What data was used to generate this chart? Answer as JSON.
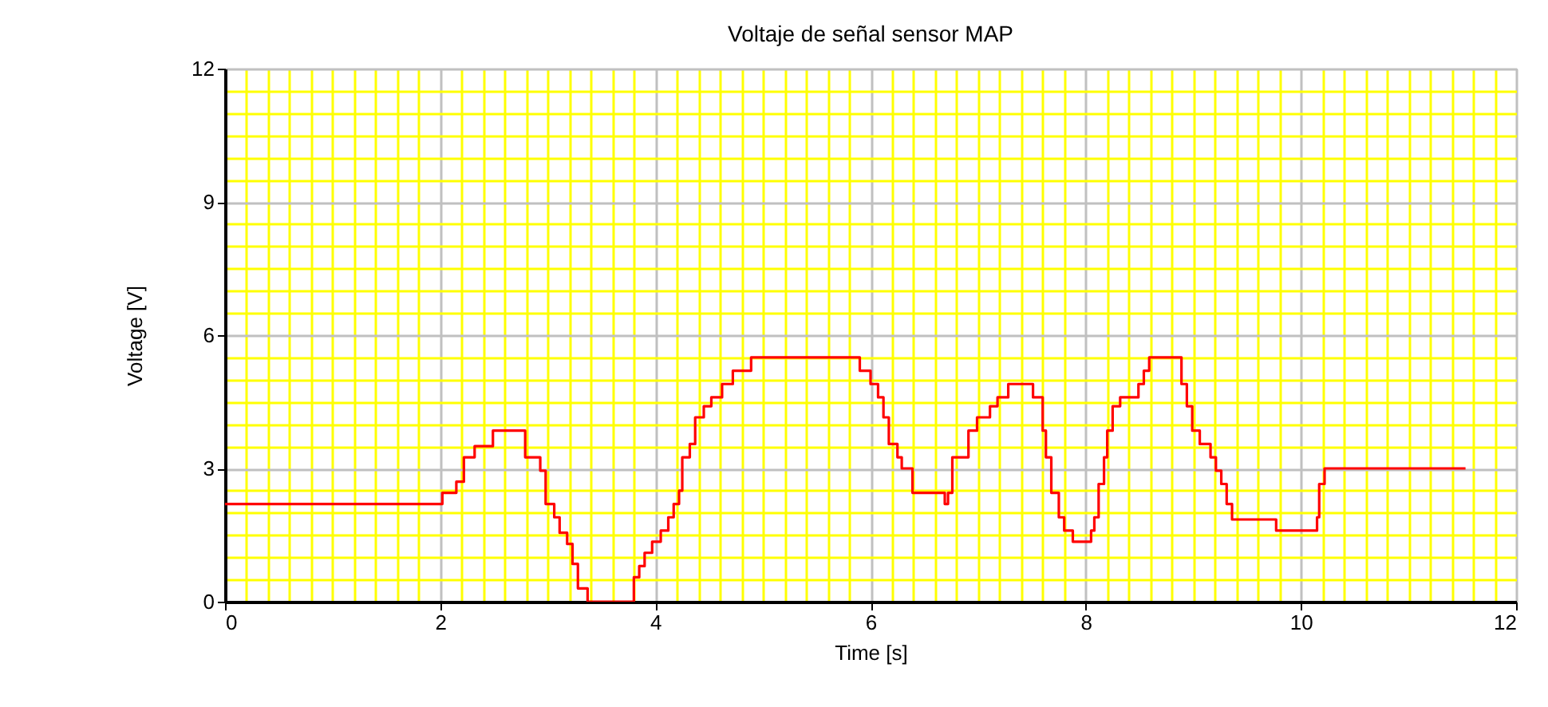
{
  "chart_data": {
    "type": "step",
    "title": "Voltaje de señal sensor MAP",
    "xlabel": "Time [s]",
    "ylabel": "Voltage [V]",
    "x": [
      0,
      2.02,
      2.15,
      2.22,
      2.32,
      2.49,
      2.79,
      2.85,
      2.93,
      2.98,
      3.06,
      3.11,
      3.18,
      3.23,
      3.28,
      3.37,
      3.78,
      3.8,
      3.85,
      3.9,
      3.97,
      4.05,
      4.12,
      4.17,
      4.22,
      4.25,
      4.29,
      4.32,
      4.37,
      4.45,
      4.52,
      4.62,
      4.72,
      4.89,
      5.9,
      6.0,
      6.07,
      6.12,
      6.17,
      6.25,
      6.29,
      6.39,
      6.69,
      6.72,
      6.76,
      6.91,
      6.99,
      7.11,
      7.18,
      7.28,
      7.51,
      7.55,
      7.6,
      7.63,
      7.68,
      7.75,
      7.8,
      7.88,
      8.05,
      8.08,
      8.12,
      8.17,
      8.2,
      8.25,
      8.32,
      8.49,
      8.54,
      8.59,
      8.89,
      8.94,
      8.99,
      9.06,
      9.16,
      9.21,
      9.26,
      9.31,
      9.36,
      9.77,
      10.12,
      10.15,
      10.17,
      10.22,
      11.53
    ],
    "series": [
      {
        "color": "#ff0000",
        "values": [
          2.2,
          2.45,
          2.7,
          3.25,
          3.5,
          3.85,
          3.25,
          3.25,
          2.95,
          2.2,
          1.9,
          1.55,
          1.3,
          0.85,
          0.3,
          0,
          0,
          0.55,
          0.8,
          1.1,
          1.35,
          1.6,
          1.9,
          2.2,
          2.5,
          3.25,
          3.25,
          3.55,
          4.15,
          4.4,
          4.6,
          4.9,
          5.2,
          5.5,
          5.2,
          4.9,
          4.6,
          4.15,
          3.55,
          3.25,
          3.0,
          2.45,
          2.2,
          2.45,
          3.25,
          3.85,
          4.15,
          4.4,
          4.6,
          4.9,
          4.6,
          4.6,
          3.85,
          3.25,
          2.45,
          1.9,
          1.6,
          1.35,
          1.6,
          1.9,
          2.65,
          3.25,
          3.85,
          4.4,
          4.6,
          4.9,
          5.2,
          5.5,
          4.9,
          4.4,
          3.85,
          3.55,
          3.25,
          2.95,
          2.65,
          2.2,
          1.85,
          1.6,
          1.6,
          1.9,
          2.65,
          3.0,
          3.0
        ]
      }
    ],
    "xlim": [
      0,
      12
    ],
    "ylim": [
      0,
      12
    ],
    "xticks": [
      0,
      {
        "value": 0.2,
        "label": null
      },
      {
        "value": 0.4,
        "label": null
      },
      {
        "value": 0.6,
        "label": null
      },
      {
        "value": 0.8,
        "label": null
      },
      {
        "value": 1,
        "label": null
      },
      {
        "value": 1.2,
        "label": null
      },
      {
        "value": 1.4,
        "label": null
      },
      {
        "value": 1.6,
        "label": null
      },
      {
        "value": 1.8,
        "label": null
      },
      2,
      {
        "value": 2.2,
        "label": null
      },
      {
        "value": 2.4,
        "label": null
      },
      {
        "value": 2.6,
        "label": null
      },
      {
        "value": 2.8,
        "label": null
      },
      {
        "value": 3,
        "label": null
      },
      {
        "value": 3.2,
        "label": null
      },
      {
        "value": 3.4,
        "label": null
      },
      {
        "value": 3.6,
        "label": null
      },
      {
        "value": 3.8,
        "label": null
      },
      4,
      {
        "value": 4.2,
        "label": null
      },
      {
        "value": 4.4,
        "label": null
      },
      {
        "value": 4.6,
        "label": null
      },
      {
        "value": 4.8,
        "label": null
      },
      {
        "value": 5,
        "label": null
      },
      {
        "value": 5.2,
        "label": null
      },
      {
        "value": 5.4,
        "label": null
      },
      {
        "value": 5.6,
        "label": null
      },
      {
        "value": 5.8,
        "label": null
      },
      6,
      {
        "value": 6.2,
        "label": null
      },
      {
        "value": 6.4,
        "label": null
      },
      {
        "value": 6.6,
        "label": null
      },
      {
        "value": 6.8,
        "label": null
      },
      {
        "value": 7,
        "label": null
      },
      {
        "value": 7.2,
        "label": null
      },
      {
        "value": 7.4,
        "label": null
      },
      {
        "value": 7.6,
        "label": null
      },
      {
        "value": 7.8,
        "label": null
      },
      8,
      {
        "value": 8.2,
        "label": null
      },
      {
        "value": 8.4,
        "label": null
      },
      {
        "value": 8.6,
        "label": null
      },
      {
        "value": 8.8,
        "label": null
      },
      {
        "value": 9,
        "label": null
      },
      {
        "value": 9.2,
        "label": null
      },
      {
        "value": 9.4,
        "label": null
      },
      {
        "value": 9.6,
        "label": null
      },
      {
        "value": 9.8,
        "label": null
      },
      10,
      {
        "value": 10.2,
        "label": null
      },
      {
        "value": 10.4,
        "label": null
      },
      {
        "value": 10.6,
        "label": null
      },
      {
        "value": 10.8,
        "label": null
      },
      {
        "value": 11,
        "label": null
      },
      {
        "value": 11.2,
        "label": null
      },
      {
        "value": 11.4,
        "label": null
      },
      {
        "value": 11.6,
        "label": null
      },
      {
        "value": 11.8,
        "label": null
      },
      12
    ],
    "yticks": [
      0,
      {
        "value": 0.5,
        "label": null
      },
      {
        "value": 1,
        "label": null
      },
      {
        "value": 1.5,
        "label": null
      },
      {
        "value": 2,
        "label": null
      },
      {
        "value": 2.5,
        "label": null
      },
      3,
      {
        "value": 3.5,
        "label": null
      },
      {
        "value": 4,
        "label": null
      },
      {
        "value": 4.5,
        "label": null
      },
      {
        "value": 5,
        "label": null
      },
      {
        "value": 5.5,
        "label": null
      },
      6,
      {
        "value": 6.5,
        "label": null
      },
      {
        "value": 7,
        "label": null
      },
      {
        "value": 7.5,
        "label": null
      },
      {
        "value": 8,
        "label": null
      },
      {
        "value": 8.5,
        "label": null
      },
      9,
      {
        "value": 9.5,
        "label": null
      },
      {
        "value": 10,
        "label": null
      },
      {
        "value": 10.5,
        "label": null
      },
      {
        "value": 11,
        "label": null
      },
      {
        "value": 11.5,
        "label": null
      },
      12
    ],
    "grid": true
  }
}
